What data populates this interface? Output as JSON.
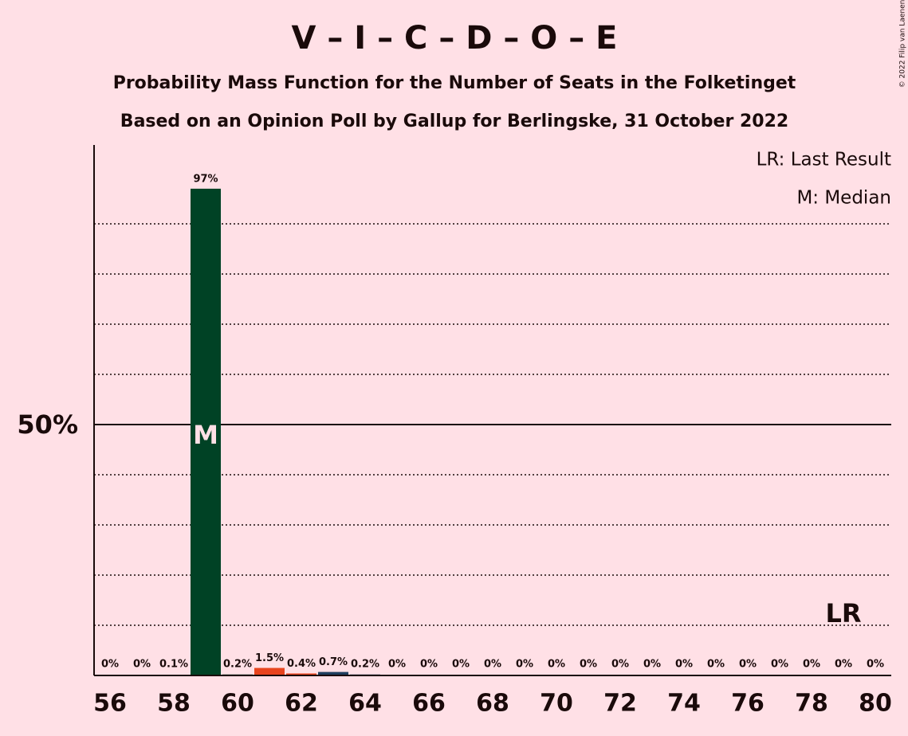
{
  "chart_data": {
    "type": "bar",
    "title": "V – I – C – D – O – E",
    "subtitle": "Probability Mass Function for the Number of Seats in the Folketinget",
    "subtitle2": "Based on an Opinion Poll by Gallup for Berlingske, 31 October 2022",
    "copyright": "© 2022 Filip van Laenen",
    "legend": [
      "LR: Last Result",
      "M: Median"
    ],
    "x": [
      56,
      57,
      58,
      59,
      60,
      61,
      62,
      63,
      64,
      65,
      66,
      67,
      68,
      69,
      70,
      71,
      72,
      73,
      74,
      75,
      76,
      77,
      78,
      79,
      80
    ],
    "values": [
      0,
      0,
      0.1,
      97,
      0.2,
      1.5,
      0.4,
      0.7,
      0.2,
      0,
      0,
      0,
      0,
      0,
      0,
      0,
      0,
      0,
      0,
      0,
      0,
      0,
      0,
      0,
      0
    ],
    "value_labels": [
      "0%",
      "0%",
      "0.1%",
      "97%",
      "0.2%",
      "1.5%",
      "0.4%",
      "0.7%",
      "0.2%",
      "0%",
      "0%",
      "0%",
      "0%",
      "0%",
      "0%",
      "0%",
      "0%",
      "0%",
      "0%",
      "0%",
      "0%",
      "0%",
      "0%",
      "0%",
      "0%"
    ],
    "colors": [
      "#004225",
      "#004225",
      "#004225",
      "#004225",
      "#004225",
      "#e8441e",
      "#e8441e",
      "#1f3f5f",
      "#1f3f5f",
      "#004225",
      "#004225",
      "#004225",
      "#004225",
      "#004225",
      "#004225",
      "#004225",
      "#004225",
      "#004225",
      "#004225",
      "#004225",
      "#004225",
      "#004225",
      "#004225",
      "#004225",
      "#004225"
    ],
    "xlim": [
      55.5,
      80.5
    ],
    "xticks": [
      56,
      58,
      60,
      62,
      64,
      66,
      68,
      70,
      72,
      74,
      76,
      78,
      80
    ],
    "ylim": [
      0,
      105
    ],
    "yticks": [
      {
        "value": 50,
        "label": "50%"
      }
    ],
    "minor_yticks": [
      10,
      20,
      30,
      40,
      60,
      70,
      80,
      90
    ],
    "median": 59,
    "median_label": "M",
    "last_result": 79,
    "last_result_label": "LR"
  }
}
